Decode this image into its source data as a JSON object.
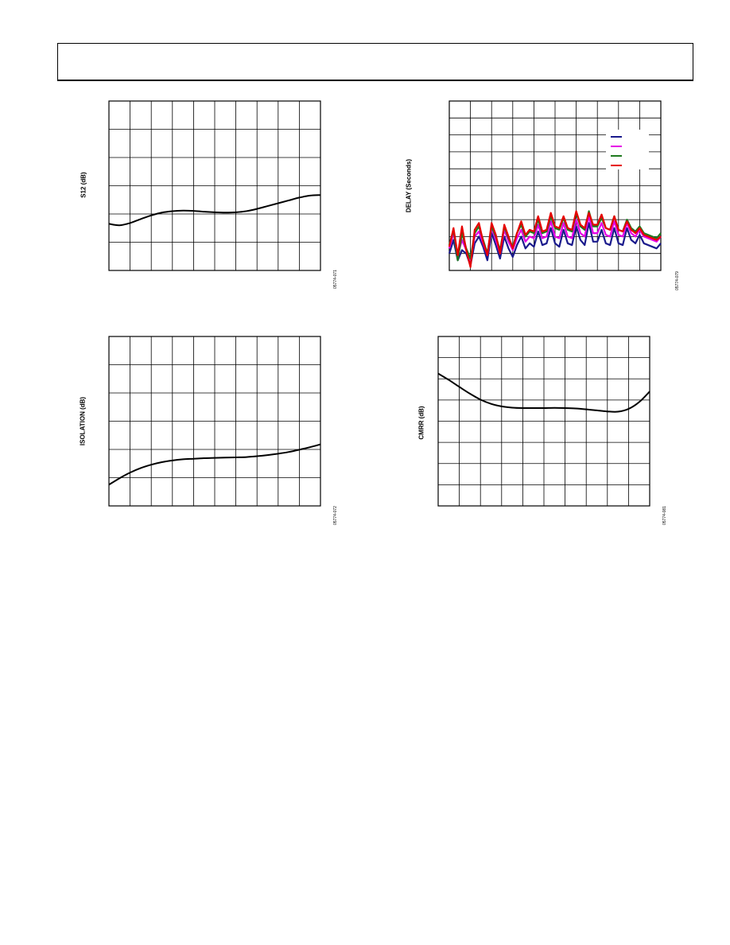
{
  "charts": [
    {
      "ylabel": "S12 (dB)",
      "figure_id": "05774-071"
    },
    {
      "ylabel": "DELAY (Seconds)",
      "figure_id": "05774-079"
    },
    {
      "ylabel": "ISOLATION (dB)",
      "figure_id": "05774-072"
    },
    {
      "ylabel": "CMRR (dB)",
      "figure_id": "05774-081"
    }
  ],
  "chart_data": [
    {
      "type": "line",
      "ylabel": "S12 (dB)",
      "grid": true,
      "x_divisions": 10,
      "y_divisions": 6,
      "ylim": [
        0,
        6
      ],
      "x": [
        0,
        0.5,
        1,
        1.5,
        2,
        2.5,
        3,
        3.5,
        4,
        4.5,
        5,
        5.5,
        6,
        6.5,
        7,
        7.5,
        8,
        8.5,
        9,
        9.5,
        10
      ],
      "series": [
        {
          "color": "#000000",
          "values": [
            1.65,
            1.6,
            1.68,
            1.82,
            1.95,
            2.05,
            2.1,
            2.12,
            2.11,
            2.08,
            2.06,
            2.05,
            2.06,
            2.1,
            2.18,
            2.28,
            2.38,
            2.48,
            2.58,
            2.65,
            2.67
          ]
        }
      ]
    },
    {
      "type": "line",
      "ylabel": "DELAY (Seconds)",
      "grid": true,
      "x_divisions": 10,
      "y_divisions": 10,
      "ylim": [
        0,
        10
      ],
      "legend": {
        "position": "top-right",
        "entries": [
          "",
          "",
          "",
          ""
        ]
      },
      "x": [
        0,
        0.2,
        0.4,
        0.6,
        0.8,
        1,
        1.2,
        1.4,
        1.6,
        1.8,
        2,
        2.2,
        2.4,
        2.6,
        2.8,
        3,
        3.2,
        3.4,
        3.6,
        3.8,
        4,
        4.2,
        4.4,
        4.6,
        4.8,
        5,
        5.2,
        5.4,
        5.6,
        5.8,
        6,
        6.2,
        6.4,
        6.6,
        6.8,
        7,
        7.2,
        7.4,
        7.6,
        7.8,
        8,
        8.2,
        8.4,
        8.6,
        8.8,
        9,
        9.2,
        9.4,
        9.6,
        9.8,
        10
      ],
      "series": [
        {
          "color": "#1a1a8c",
          "values": [
            1.0,
            1.8,
            0.6,
            1.2,
            1.0,
            0.3,
            1.6,
            2.0,
            1.4,
            0.6,
            2.2,
            1.5,
            0.7,
            2.0,
            1.3,
            0.8,
            1.5,
            2.0,
            1.3,
            1.6,
            1.4,
            2.3,
            1.5,
            1.6,
            2.5,
            1.6,
            1.4,
            2.4,
            1.6,
            1.5,
            2.6,
            1.8,
            1.5,
            2.8,
            1.7,
            1.7,
            2.4,
            1.6,
            1.5,
            2.5,
            1.6,
            1.5,
            2.5,
            1.8,
            1.6,
            2.1,
            1.6,
            1.5,
            1.4,
            1.3,
            1.6
          ]
        },
        {
          "color": "#e600e6",
          "values": [
            1.3,
            2.2,
            0.9,
            1.8,
            1.2,
            0.6,
            2.0,
            2.3,
            1.6,
            0.9,
            2.5,
            1.8,
            1.0,
            2.4,
            1.7,
            1.2,
            1.9,
            2.4,
            1.7,
            2.0,
            1.9,
            2.7,
            1.9,
            2.0,
            2.9,
            2.0,
            1.9,
            2.8,
            2.0,
            1.9,
            3.0,
            2.2,
            2.0,
            3.2,
            2.2,
            2.2,
            2.8,
            2.1,
            2.0,
            2.9,
            2.1,
            2.0,
            2.8,
            2.2,
            2.0,
            2.4,
            2.0,
            1.9,
            1.8,
            1.7,
            2.0
          ]
        },
        {
          "color": "#1f7a1f",
          "values": [
            1.5,
            2.4,
            0.6,
            2.2,
            1.3,
            0.7,
            2.2,
            2.6,
            1.8,
            1.0,
            2.6,
            2.0,
            1.2,
            2.6,
            1.9,
            1.4,
            2.2,
            2.7,
            2.0,
            2.3,
            2.2,
            3.0,
            2.2,
            2.3,
            3.2,
            2.5,
            2.4,
            3.1,
            2.4,
            2.3,
            3.4,
            2.6,
            2.4,
            3.5,
            2.6,
            2.6,
            3.1,
            2.5,
            2.4,
            3.2,
            2.4,
            2.3,
            3.0,
            2.5,
            2.3,
            2.6,
            2.2,
            2.1,
            2.0,
            1.9,
            2.2
          ]
        },
        {
          "color": "#e60000",
          "values": [
            1.4,
            2.5,
            0.9,
            2.6,
            1.2,
            0.2,
            2.4,
            2.8,
            1.7,
            0.9,
            2.8,
            2.1,
            1.0,
            2.7,
            2.0,
            1.3,
            2.2,
            2.9,
            2.1,
            2.4,
            2.3,
            3.2,
            2.3,
            2.4,
            3.4,
            2.6,
            2.5,
            3.2,
            2.5,
            2.4,
            3.5,
            2.7,
            2.5,
            3.4,
            2.7,
            2.7,
            3.3,
            2.5,
            2.4,
            3.2,
            2.4,
            2.3,
            2.9,
            2.4,
            2.2,
            2.5,
            2.1,
            2.0,
            1.9,
            1.8,
            2.0
          ]
        }
      ]
    },
    {
      "type": "line",
      "ylabel": "ISOLATION (dB)",
      "grid": true,
      "x_divisions": 10,
      "y_divisions": 6,
      "ylim": [
        0,
        6
      ],
      "x": [
        0,
        0.5,
        1,
        1.5,
        2,
        2.5,
        3,
        3.5,
        4,
        4.5,
        5,
        5.5,
        6,
        6.5,
        7,
        7.5,
        8,
        8.5,
        9,
        9.5,
        10
      ],
      "series": [
        {
          "color": "#000000",
          "values": [
            0.75,
            0.98,
            1.18,
            1.34,
            1.46,
            1.55,
            1.61,
            1.65,
            1.67,
            1.69,
            1.7,
            1.71,
            1.72,
            1.73,
            1.76,
            1.8,
            1.85,
            1.91,
            1.99,
            2.08,
            2.18
          ]
        }
      ]
    },
    {
      "type": "line",
      "ylabel": "CMRR (dB)",
      "grid": true,
      "x_divisions": 10,
      "y_divisions": 8,
      "ylim": [
        0,
        8
      ],
      "x": [
        0,
        0.5,
        1,
        1.5,
        2,
        2.5,
        3,
        3.5,
        4,
        4.5,
        5,
        5.5,
        6,
        6.5,
        7,
        7.5,
        8,
        8.5,
        9,
        9.5,
        10
      ],
      "series": [
        {
          "color": "#000000",
          "values": [
            6.25,
            5.95,
            5.62,
            5.3,
            5.02,
            4.82,
            4.7,
            4.64,
            4.62,
            4.62,
            4.62,
            4.63,
            4.62,
            4.6,
            4.56,
            4.51,
            4.46,
            4.45,
            4.58,
            4.9,
            5.4
          ]
        }
      ]
    }
  ]
}
